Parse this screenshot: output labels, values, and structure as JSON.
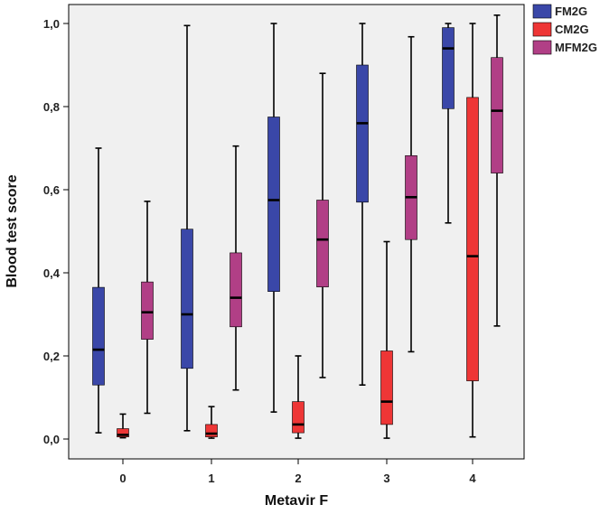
{
  "chart_data": {
    "type": "boxplot",
    "xlabel": "Metavir F",
    "ylabel": "Blood test score",
    "categories": [
      "0",
      "1",
      "2",
      "3",
      "4"
    ],
    "ylim": [
      0,
      1.0
    ],
    "y_ticks": [
      "0,0",
      "0,2",
      "0,4",
      "0,6",
      "0,8",
      "1,0"
    ],
    "grid": false,
    "legend_position": "top-right",
    "series": [
      {
        "name": "FM2G",
        "color": "#3a47a8",
        "boxes": [
          {
            "min": 0.015,
            "q1": 0.13,
            "median": 0.215,
            "q3": 0.365,
            "max": 0.7
          },
          {
            "min": 0.02,
            "q1": 0.17,
            "median": 0.3,
            "q3": 0.505,
            "max": 0.995
          },
          {
            "min": 0.065,
            "q1": 0.355,
            "median": 0.575,
            "q3": 0.775,
            "max": 1.0
          },
          {
            "min": 0.13,
            "q1": 0.57,
            "median": 0.76,
            "q3": 0.9,
            "max": 1.0
          },
          {
            "min": 0.52,
            "q1": 0.795,
            "median": 0.94,
            "q3": 0.99,
            "max": 1.0
          }
        ]
      },
      {
        "name": "CM2G",
        "color": "#ee3636",
        "boxes": [
          {
            "min": 0.003,
            "q1": 0.005,
            "median": 0.01,
            "q3": 0.025,
            "max": 0.06
          },
          {
            "min": 0.002,
            "q1": 0.005,
            "median": 0.013,
            "q3": 0.035,
            "max": 0.078
          },
          {
            "min": 0.002,
            "q1": 0.015,
            "median": 0.035,
            "q3": 0.09,
            "max": 0.2
          },
          {
            "min": 0.002,
            "q1": 0.035,
            "median": 0.09,
            "q3": 0.212,
            "max": 0.475
          },
          {
            "min": 0.005,
            "q1": 0.14,
            "median": 0.44,
            "q3": 0.822,
            "max": 1.0
          }
        ]
      },
      {
        "name": "MFM2G",
        "color": "#b13f86",
        "boxes": [
          {
            "min": 0.062,
            "q1": 0.24,
            "median": 0.305,
            "q3": 0.378,
            "max": 0.572
          },
          {
            "min": 0.118,
            "q1": 0.27,
            "median": 0.34,
            "q3": 0.448,
            "max": 0.705
          },
          {
            "min": 0.148,
            "q1": 0.366,
            "median": 0.48,
            "q3": 0.575,
            "max": 0.88
          },
          {
            "min": 0.21,
            "q1": 0.48,
            "median": 0.582,
            "q3": 0.682,
            "max": 0.968
          },
          {
            "min": 0.272,
            "q1": 0.64,
            "median": 0.79,
            "q3": 0.918,
            "max": 1.02
          }
        ]
      }
    ]
  }
}
